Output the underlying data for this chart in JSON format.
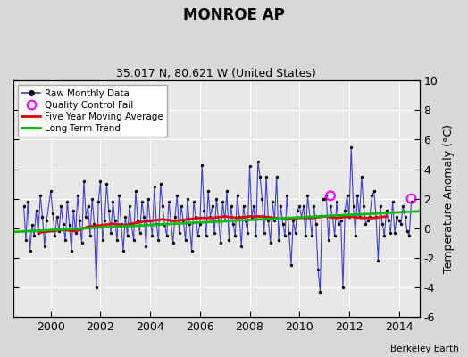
{
  "title": "MONROE AP",
  "subtitle": "35.017 N, 80.621 W (United States)",
  "ylabel": "Temperature Anomaly (°C)",
  "attribution": "Berkeley Earth",
  "ylim": [
    -6,
    10
  ],
  "xlim": [
    1998.5,
    2014.83
  ],
  "xticks": [
    2000,
    2002,
    2004,
    2006,
    2008,
    2010,
    2012,
    2014
  ],
  "yticks": [
    -6,
    -4,
    -2,
    0,
    2,
    4,
    6,
    8,
    10
  ],
  "outer_bg": "#d8d8d8",
  "inner_bg": "#e8e8e8",
  "raw_color": "#4040cc",
  "dot_color": "#000000",
  "ma_color": "#dd0000",
  "trend_color": "#00bb00",
  "qc_color": "#ff00ff",
  "raw_data_times": [
    1998.917,
    1999.0,
    1999.083,
    1999.167,
    1999.25,
    1999.333,
    1999.417,
    1999.5,
    1999.583,
    1999.667,
    1999.75,
    1999.833,
    2000.0,
    2000.083,
    2000.167,
    2000.25,
    2000.333,
    2000.417,
    2000.5,
    2000.583,
    2000.667,
    2000.75,
    2000.833,
    2000.917,
    2001.0,
    2001.083,
    2001.167,
    2001.25,
    2001.333,
    2001.417,
    2001.5,
    2001.583,
    2001.667,
    2001.75,
    2001.833,
    2001.917,
    2002.0,
    2002.083,
    2002.167,
    2002.25,
    2002.333,
    2002.417,
    2002.5,
    2002.583,
    2002.667,
    2002.75,
    2002.833,
    2002.917,
    2003.0,
    2003.083,
    2003.167,
    2003.25,
    2003.333,
    2003.417,
    2003.5,
    2003.583,
    2003.667,
    2003.75,
    2003.833,
    2003.917,
    2004.0,
    2004.083,
    2004.167,
    2004.25,
    2004.333,
    2004.417,
    2004.5,
    2004.583,
    2004.667,
    2004.75,
    2004.833,
    2004.917,
    2005.0,
    2005.083,
    2005.167,
    2005.25,
    2005.333,
    2005.417,
    2005.5,
    2005.583,
    2005.667,
    2005.75,
    2005.833,
    2005.917,
    2006.0,
    2006.083,
    2006.167,
    2006.25,
    2006.333,
    2006.417,
    2006.5,
    2006.583,
    2006.667,
    2006.75,
    2006.833,
    2006.917,
    2007.0,
    2007.083,
    2007.167,
    2007.25,
    2007.333,
    2007.417,
    2007.5,
    2007.583,
    2007.667,
    2007.75,
    2007.833,
    2007.917,
    2008.0,
    2008.083,
    2008.167,
    2008.25,
    2008.333,
    2008.417,
    2008.5,
    2008.583,
    2008.667,
    2008.75,
    2008.833,
    2008.917,
    2009.0,
    2009.083,
    2009.167,
    2009.25,
    2009.333,
    2009.417,
    2009.5,
    2009.583,
    2009.667,
    2009.75,
    2009.833,
    2009.917,
    2010.0,
    2010.083,
    2010.167,
    2010.25,
    2010.333,
    2010.417,
    2010.5,
    2010.583,
    2010.667,
    2010.75,
    2010.833,
    2010.917,
    2011.0,
    2011.083,
    2011.167,
    2011.25,
    2011.333,
    2011.417,
    2011.5,
    2011.583,
    2011.667,
    2011.75,
    2011.833,
    2011.917,
    2012.0,
    2012.083,
    2012.167,
    2012.25,
    2012.333,
    2012.417,
    2012.5,
    2012.583,
    2012.667,
    2012.75,
    2012.833,
    2012.917,
    2013.0,
    2013.083,
    2013.167,
    2013.25,
    2013.333,
    2013.417,
    2013.5,
    2013.583,
    2013.667,
    2013.75,
    2013.833,
    2013.917,
    2014.0,
    2014.083,
    2014.167,
    2014.25,
    2014.333,
    2014.417,
    2014.5
  ],
  "raw_data_values": [
    1.5,
    -0.8,
    1.8,
    -1.5,
    0.2,
    -0.5,
    1.2,
    -0.3,
    2.2,
    0.8,
    -1.2,
    0.5,
    2.5,
    1.0,
    -0.5,
    0.8,
    -0.2,
    1.5,
    0.3,
    -0.8,
    1.8,
    0.2,
    -1.5,
    1.2,
    -0.3,
    2.2,
    0.5,
    -1.0,
    3.2,
    0.8,
    1.5,
    -0.5,
    2.0,
    0.3,
    -4.0,
    1.8,
    3.2,
    -0.8,
    0.5,
    3.0,
    1.2,
    -0.3,
    1.8,
    0.5,
    -0.8,
    2.2,
    0.3,
    -1.5,
    0.8,
    -0.5,
    1.5,
    0.2,
    -0.8,
    2.5,
    0.5,
    -0.3,
    1.8,
    0.8,
    -1.2,
    2.0,
    0.5,
    -0.5,
    2.8,
    0.3,
    -0.8,
    3.0,
    1.5,
    0.2,
    -0.5,
    1.8,
    0.5,
    -1.0,
    0.8,
    2.2,
    -0.3,
    1.5,
    0.5,
    -0.8,
    2.0,
    0.3,
    -1.5,
    1.8,
    0.8,
    -0.5,
    0.3,
    4.3,
    1.2,
    -0.5,
    2.5,
    0.8,
    1.5,
    -0.3,
    2.0,
    0.5,
    -1.0,
    1.8,
    0.5,
    2.5,
    -0.8,
    1.5,
    0.3,
    -0.5,
    2.2,
    0.8,
    -1.2,
    1.5,
    0.5,
    -0.3,
    4.2,
    0.8,
    1.5,
    -0.5,
    4.5,
    3.5,
    2.0,
    -0.3,
    3.5,
    0.5,
    -1.0,
    1.8,
    0.5,
    3.5,
    -0.8,
    1.5,
    0.3,
    -0.5,
    2.2,
    -0.3,
    -2.5,
    0.5,
    -0.3,
    1.2,
    1.5,
    0.8,
    1.5,
    -0.5,
    2.2,
    0.8,
    -0.5,
    1.5,
    0.3,
    -2.8,
    -4.3,
    2.0,
    2.0,
    2.2,
    -0.8,
    1.5,
    0.8,
    -0.5,
    1.8,
    0.3,
    0.5,
    -4.0,
    1.2,
    2.2,
    0.8,
    5.5,
    1.5,
    -0.5,
    2.2,
    0.8,
    3.5,
    1.5,
    0.3,
    0.5,
    0.8,
    2.2,
    2.5,
    0.8,
    -2.2,
    1.5,
    0.3,
    -0.5,
    1.2,
    0.5,
    -0.3,
    1.8,
    -0.3,
    0.8,
    0.5,
    0.3,
    1.5,
    0.8,
    -0.2,
    -0.5,
    1.8
  ],
  "ma_times": [
    1999.5,
    2000.0,
    2000.5,
    2001.0,
    2001.5,
    2002.0,
    2002.5,
    2003.0,
    2003.5,
    2004.0,
    2004.5,
    2005.0,
    2005.5,
    2006.0,
    2006.5,
    2007.0,
    2007.5,
    2008.0,
    2008.5,
    2009.0,
    2009.5,
    2010.0,
    2010.5,
    2011.0,
    2011.5,
    2012.0,
    2012.5,
    2013.0,
    2013.5
  ],
  "ma_values": [
    -0.3,
    -0.2,
    -0.1,
    -0.2,
    0.1,
    0.2,
    0.3,
    0.2,
    0.4,
    0.5,
    0.6,
    0.5,
    0.6,
    0.7,
    0.7,
    0.8,
    0.7,
    0.8,
    0.8,
    0.7,
    0.6,
    0.7,
    0.7,
    0.8,
    0.7,
    0.8,
    0.7,
    0.7,
    0.8
  ],
  "trend_times": [
    1998.5,
    2014.83
  ],
  "trend_values": [
    -0.25,
    1.15
  ],
  "qc_times": [
    2011.25,
    2014.5
  ],
  "qc_values": [
    2.2,
    2.0
  ]
}
